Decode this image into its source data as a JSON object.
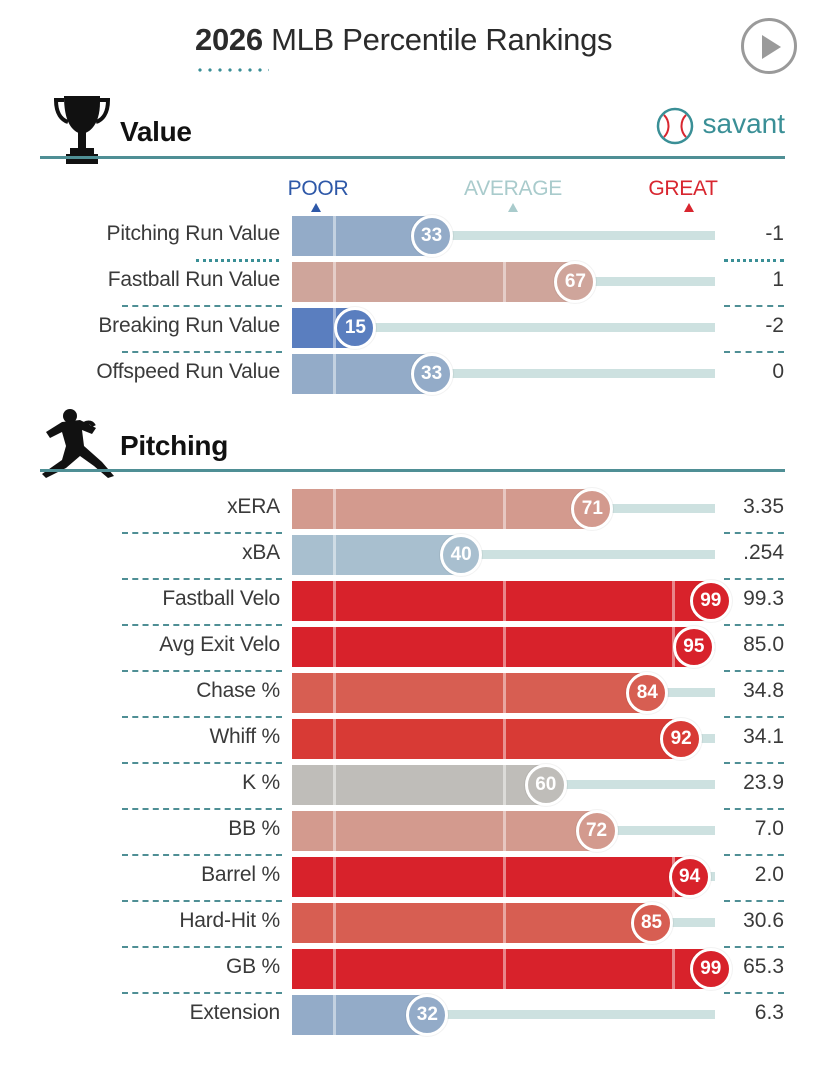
{
  "header": {
    "title_year": "2026",
    "title_rest": "MLB Percentile Rankings",
    "play_icon": "play-icon"
  },
  "sections": {
    "value": {
      "title": "Value",
      "icon": "trophy-icon"
    },
    "pitching": {
      "title": "Pitching",
      "icon": "pitcher-silhouette-icon"
    }
  },
  "brand": {
    "text": "savant",
    "icon": "baseball-icon",
    "color": "#3a8f96"
  },
  "scale": {
    "poor": "POOR",
    "average": "AVERAGE",
    "great": "GREAT",
    "poor_color": "#2e58a8",
    "average_color": "#a9cbcc",
    "great_color": "#d8262f"
  },
  "chart_data": {
    "type": "bar",
    "xlim": [
      0,
      100
    ],
    "groups": [
      {
        "name": "Value",
        "metrics": [
          {
            "label": "Pitching Run Value",
            "percentile": 33,
            "value": "-1",
            "color": "#93abc8"
          },
          {
            "label": "Fastball Run Value",
            "percentile": 67,
            "value": "1",
            "color": "#cfa59b"
          },
          {
            "label": "Breaking Run Value",
            "percentile": 15,
            "value": "-2",
            "color": "#5a7ebf"
          },
          {
            "label": "Offspeed Run Value",
            "percentile": 33,
            "value": "0",
            "color": "#93abc8"
          }
        ]
      },
      {
        "name": "Pitching",
        "metrics": [
          {
            "label": "xERA",
            "percentile": 71,
            "value": "3.35",
            "color": "#d39a8e"
          },
          {
            "label": "xBA",
            "percentile": 40,
            "value": ".254",
            "color": "#a8bfcf"
          },
          {
            "label": "Fastball Velo",
            "percentile": 99,
            "value": "99.3",
            "color": "#d8222b"
          },
          {
            "label": "Avg Exit Velo",
            "percentile": 95,
            "value": "85.0",
            "color": "#d8222b"
          },
          {
            "label": "Chase %",
            "percentile": 84,
            "value": "34.8",
            "color": "#d75e52"
          },
          {
            "label": "Whiff %",
            "percentile": 92,
            "value": "34.1",
            "color": "#d83a35"
          },
          {
            "label": "K %",
            "percentile": 60,
            "value": "23.9",
            "color": "#bfbdb9"
          },
          {
            "label": "BB %",
            "percentile": 72,
            "value": "7.0",
            "color": "#d39a8e"
          },
          {
            "label": "Barrel %",
            "percentile": 94,
            "value": "2.0",
            "color": "#d8222b"
          },
          {
            "label": "Hard-Hit %",
            "percentile": 85,
            "value": "30.6",
            "color": "#d75e52"
          },
          {
            "label": "GB %",
            "percentile": 99,
            "value": "65.3",
            "color": "#d8222b"
          },
          {
            "label": "Extension",
            "percentile": 32,
            "value": "6.3",
            "color": "#93abc8"
          }
        ]
      }
    ]
  }
}
